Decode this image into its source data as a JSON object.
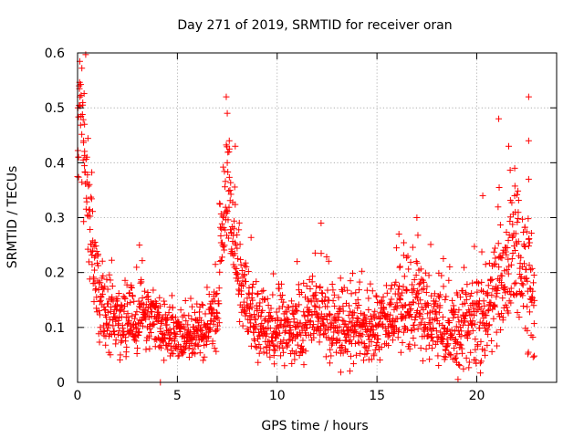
{
  "chart_data": {
    "type": "scatter",
    "title": "Day 271 of 2019, SRMTID for receiver oran",
    "xlabel": "GPS time / hours",
    "ylabel": "SRMTID / TECUs",
    "xlim": [
      0,
      24
    ],
    "ylim": [
      0,
      0.6
    ],
    "xticks": [
      0,
      5,
      10,
      15,
      20
    ],
    "xtick_labels": [
      "0",
      "5",
      "10",
      "15",
      "20"
    ],
    "yticks": [
      0,
      0.1,
      0.2,
      0.3,
      0.4,
      0.5,
      0.6
    ],
    "ytick_labels": [
      "0",
      "0.1",
      "0.2",
      "0.3",
      "0.4",
      "0.5",
      "0.6"
    ],
    "grid": true,
    "marker": "+",
    "color": "#ff0000",
    "series": [
      {
        "name": "SRMTID",
        "description": "dense scatter, approx. 2000 samples between 0 and 22.9 h",
        "envelope": {
          "x": [
            0,
            0.1,
            0.3,
            0.6,
            1,
            1.5,
            2.5,
            3.5,
            4.5,
            5.5,
            6.5,
            7.0,
            7.3,
            7.6,
            8.0,
            8.5,
            9.5,
            11,
            12.3,
            13,
            14.5,
            15.5,
            16.5,
            17.5,
            18.5,
            19.5,
            20.5,
            21.3,
            21.8,
            22.2,
            22.6,
            22.9
          ],
          "y": [
            0.35,
            0.54,
            0.45,
            0.3,
            0.18,
            0.13,
            0.11,
            0.12,
            0.09,
            0.08,
            0.09,
            0.12,
            0.3,
            0.33,
            0.22,
            0.14,
            0.09,
            0.1,
            0.13,
            0.09,
            0.1,
            0.11,
            0.14,
            0.13,
            0.09,
            0.1,
            0.12,
            0.2,
            0.26,
            0.22,
            0.19,
            0.15
          ]
        },
        "spread": [
          0.16,
          0.16,
          0.15,
          0.14,
          0.12,
          0.09,
          0.08,
          0.08,
          0.07,
          0.07,
          0.07,
          0.09,
          0.12,
          0.14,
          0.12,
          0.1,
          0.08,
          0.08,
          0.1,
          0.08,
          0.08,
          0.09,
          0.1,
          0.1,
          0.09,
          0.11,
          0.12,
          0.14,
          0.16,
          0.16,
          0.15,
          0.14
        ],
        "peaks": [
          {
            "x": 0.08,
            "y": 0.54
          },
          {
            "x": 0.12,
            "y": 0.52
          },
          {
            "x": 0.02,
            "y": 0.5
          },
          {
            "x": 0.35,
            "y": 0.47
          },
          {
            "x": 0.3,
            "y": 0.44
          },
          {
            "x": 0.05,
            "y": 0.41
          },
          {
            "x": 7.45,
            "y": 0.52
          },
          {
            "x": 7.5,
            "y": 0.49
          },
          {
            "x": 7.6,
            "y": 0.44
          },
          {
            "x": 7.9,
            "y": 0.43
          },
          {
            "x": 7.5,
            "y": 0.4
          },
          {
            "x": 12.2,
            "y": 0.29
          },
          {
            "x": 17.0,
            "y": 0.3
          },
          {
            "x": 20.3,
            "y": 0.34
          },
          {
            "x": 21.1,
            "y": 0.48
          },
          {
            "x": 21.6,
            "y": 0.43
          },
          {
            "x": 22.6,
            "y": 0.52
          },
          {
            "x": 22.6,
            "y": 0.44
          },
          {
            "x": 22.6,
            "y": 0.37
          },
          {
            "x": 21.9,
            "y": 0.39
          },
          {
            "x": 3.1,
            "y": 0.25
          },
          {
            "x": 4.15,
            "y": 0.0
          },
          {
            "x": 16.1,
            "y": 0.27
          },
          {
            "x": 11.0,
            "y": 0.22
          }
        ]
      }
    ]
  }
}
